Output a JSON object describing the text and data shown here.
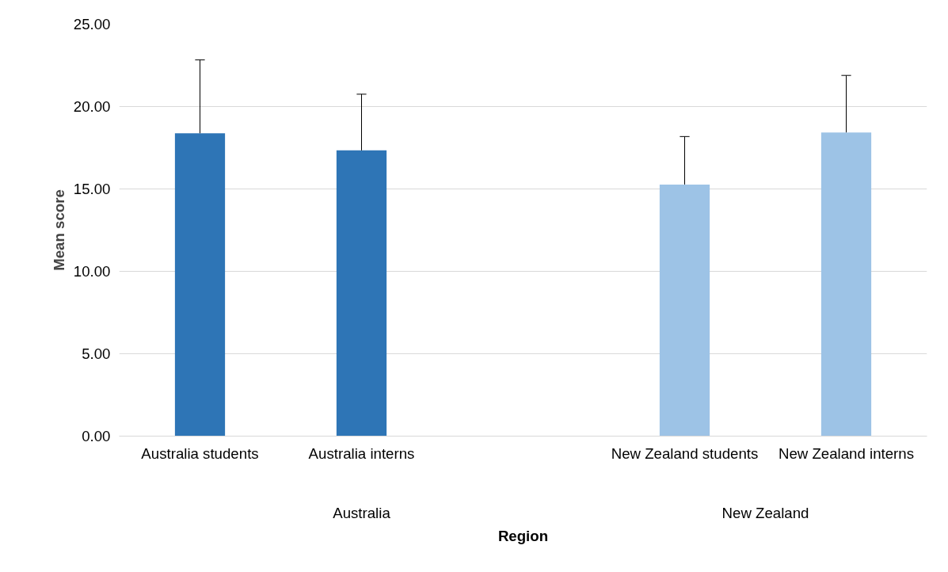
{
  "chart_data": {
    "type": "bar",
    "xlabel": "Region",
    "ylabel": "Mean score",
    "categories": [
      "Australia students",
      "Australia interns",
      null,
      "New Zealand students",
      "New Zealand interns"
    ],
    "values": [
      18.38,
      17.34,
      null,
      15.27,
      18.43
    ],
    "colors": [
      "#2e75b6",
      "#2e75b6",
      null,
      "#9dc3e6",
      "#9dc3e6"
    ],
    "errors": [
      [
        18.38,
        22.83
      ],
      [
        17.34,
        20.75
      ],
      null,
      [
        15.27,
        18.18
      ],
      [
        18.43,
        21.89
      ]
    ],
    "annotations": [
      "Australia",
      "New Zealand"
    ],
    "ylim": [
      0,
      25
    ],
    "yticks": [
      {
        "value": 0,
        "label": "0.00"
      },
      {
        "value": 5,
        "label": "5.00"
      },
      {
        "value": 10,
        "label": "10.00"
      },
      {
        "value": 15,
        "label": "15.00"
      },
      {
        "value": 20,
        "label": "20.00"
      },
      {
        "value": 25,
        "label": "25.00"
      }
    ],
    "grid": "y"
  }
}
